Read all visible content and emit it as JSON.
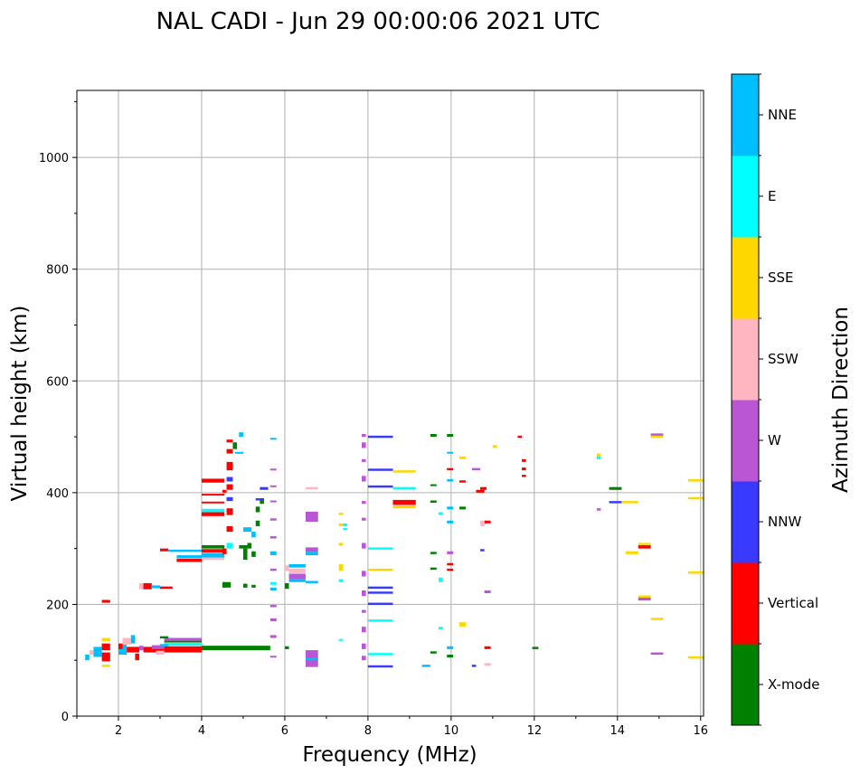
{
  "chart_data": {
    "type": "scatter",
    "title": "NAL CADI - Jun 29 00:00:06 2021 UTC",
    "xlabel": "Frequency (MHz)",
    "ylabel": "Virtual height (km)",
    "xlim": [
      1,
      16.07
    ],
    "ylim": [
      0,
      1120
    ],
    "xticks": [
      2,
      4,
      6,
      8,
      10,
      12,
      14,
      16
    ],
    "yticks": [
      0,
      200,
      400,
      600,
      800,
      1000
    ],
    "grid": true,
    "colorbar": {
      "label": "Azimuth Direction",
      "categories": [
        "X-mode",
        "Vertical",
        "NNW",
        "W",
        "SSW",
        "SSE",
        "E",
        "NNE"
      ],
      "colors": [
        "#008000",
        "#ff0000",
        "#3a3aff",
        "#ba55d3",
        "#ffb6c1",
        "#ffd700",
        "#00ffff",
        "#00bfff"
      ]
    },
    "segments_note": "each segment: [freq_start_MHz, freq_end_MHz, height_low_km, height_high_km, category_index]",
    "segments": [
      [
        4.0,
        5.65,
        118,
        126,
        0
      ],
      [
        3.1,
        4.0,
        114,
        125,
        1
      ],
      [
        3.1,
        4.0,
        126,
        131,
        6
      ],
      [
        3.1,
        4.0,
        132,
        135,
        0
      ],
      [
        3.1,
        4.0,
        135,
        140,
        3
      ],
      [
        2.6,
        3.1,
        114,
        124,
        1
      ],
      [
        2.8,
        3.1,
        120,
        127,
        3
      ],
      [
        2.9,
        3.1,
        110,
        117,
        4
      ],
      [
        3.0,
        3.2,
        125,
        129,
        7
      ],
      [
        3.0,
        3.2,
        139,
        143,
        0
      ],
      [
        1.6,
        1.8,
        98,
        114,
        1
      ],
      [
        1.6,
        1.8,
        118,
        130,
        1
      ],
      [
        1.4,
        1.6,
        106,
        124,
        7
      ],
      [
        1.6,
        1.8,
        88,
        92,
        5
      ],
      [
        1.6,
        1.8,
        134,
        140,
        5
      ],
      [
        1.2,
        1.3,
        100,
        110,
        7
      ],
      [
        1.3,
        1.4,
        110,
        118,
        4
      ],
      [
        2.0,
        2.2,
        110,
        128,
        7
      ],
      [
        2.2,
        2.5,
        114,
        124,
        1
      ],
      [
        2.1,
        2.3,
        128,
        140,
        4
      ],
      [
        2.0,
        2.1,
        120,
        130,
        1
      ],
      [
        2.3,
        2.4,
        130,
        145,
        7
      ],
      [
        2.4,
        2.5,
        100,
        112,
        1
      ],
      [
        2.5,
        2.6,
        118,
        126,
        3
      ],
      [
        1.6,
        1.8,
        203,
        208,
        1
      ],
      [
        2.5,
        2.7,
        227,
        238,
        4
      ],
      [
        2.6,
        2.8,
        227,
        238,
        1
      ],
      [
        2.8,
        3.0,
        229,
        234,
        7
      ],
      [
        3.0,
        3.3,
        228,
        232,
        1
      ],
      [
        3.0,
        3.2,
        295,
        300,
        1
      ],
      [
        3.2,
        4.0,
        294,
        298,
        7
      ],
      [
        3.4,
        4.0,
        283,
        288,
        7
      ],
      [
        3.4,
        4.0,
        276,
        282,
        1
      ],
      [
        4.0,
        4.55,
        300,
        306,
        0
      ],
      [
        4.0,
        4.55,
        293,
        299,
        1
      ],
      [
        4.0,
        4.55,
        284,
        292,
        7
      ],
      [
        4.0,
        4.55,
        280,
        284,
        4
      ],
      [
        4.0,
        4.55,
        418,
        425,
        1
      ],
      [
        4.0,
        4.55,
        395,
        398,
        1
      ],
      [
        4.0,
        4.55,
        381,
        384,
        1
      ],
      [
        4.0,
        4.55,
        365,
        371,
        6
      ],
      [
        4.0,
        4.55,
        358,
        365,
        1
      ],
      [
        4.6,
        4.75,
        440,
        455,
        1
      ],
      [
        4.6,
        4.75,
        405,
        415,
        1
      ],
      [
        4.6,
        4.75,
        360,
        372,
        1
      ],
      [
        4.6,
        4.75,
        330,
        340,
        1
      ],
      [
        4.6,
        4.75,
        470,
        478,
        1
      ],
      [
        4.6,
        4.75,
        490,
        495,
        1
      ],
      [
        4.75,
        4.85,
        478,
        490,
        0
      ],
      [
        4.6,
        4.75,
        300,
        310,
        6
      ],
      [
        4.6,
        4.75,
        420,
        428,
        2
      ],
      [
        4.6,
        4.75,
        385,
        392,
        2
      ],
      [
        4.5,
        4.6,
        290,
        300,
        1
      ],
      [
        4.5,
        4.6,
        400,
        405,
        1
      ],
      [
        4.8,
        5.0,
        470,
        473,
        7
      ],
      [
        4.9,
        5.0,
        500,
        508,
        7
      ],
      [
        5.0,
        5.1,
        280,
        300,
        0
      ],
      [
        5.1,
        5.2,
        300,
        310,
        0
      ],
      [
        5.2,
        5.3,
        285,
        295,
        0
      ],
      [
        5.2,
        5.3,
        320,
        330,
        7
      ],
      [
        5.3,
        5.4,
        340,
        350,
        0
      ],
      [
        5.3,
        5.4,
        365,
        375,
        0
      ],
      [
        5.4,
        5.5,
        380,
        390,
        0
      ],
      [
        5.3,
        5.5,
        386,
        390,
        2
      ],
      [
        5.4,
        5.6,
        405,
        410,
        2
      ],
      [
        5.0,
        5.2,
        330,
        338,
        7
      ],
      [
        4.5,
        4.7,
        230,
        240,
        0
      ],
      [
        5.0,
        5.1,
        230,
        237,
        0
      ],
      [
        5.2,
        5.3,
        230,
        235,
        0
      ],
      [
        4.9,
        5.1,
        300,
        306,
        0
      ],
      [
        5.65,
        5.8,
        495,
        498,
        7
      ],
      [
        5.65,
        5.8,
        440,
        443,
        3
      ],
      [
        5.65,
        5.8,
        410,
        413,
        3
      ],
      [
        5.65,
        5.8,
        350,
        354,
        3
      ],
      [
        5.65,
        5.8,
        318,
        322,
        3
      ],
      [
        5.65,
        5.8,
        288,
        295,
        7
      ],
      [
        5.65,
        5.8,
        260,
        264,
        3
      ],
      [
        5.65,
        5.8,
        235,
        240,
        6
      ],
      [
        5.65,
        5.8,
        195,
        199,
        3
      ],
      [
        5.65,
        5.8,
        170,
        175,
        3
      ],
      [
        5.65,
        5.8,
        140,
        145,
        3
      ],
      [
        5.65,
        5.8,
        105,
        108,
        3
      ],
      [
        5.65,
        5.8,
        383,
        386,
        3
      ],
      [
        5.65,
        5.8,
        225,
        230,
        7
      ],
      [
        6.5,
        6.8,
        348,
        366,
        3
      ],
      [
        6.5,
        6.8,
        294,
        302,
        3
      ],
      [
        6.5,
        6.8,
        288,
        294,
        7
      ],
      [
        6.5,
        6.8,
        406,
        410,
        4
      ],
      [
        6.5,
        6.8,
        88,
        118,
        3
      ],
      [
        6.5,
        6.8,
        100,
        104,
        7
      ],
      [
        6.5,
        6.8,
        238,
        242,
        7
      ],
      [
        6.1,
        6.5,
        266,
        272,
        7
      ],
      [
        6.1,
        6.5,
        256,
        264,
        4
      ],
      [
        6.1,
        6.5,
        245,
        255,
        3
      ],
      [
        6.1,
        6.5,
        240,
        245,
        7
      ],
      [
        6.0,
        6.1,
        120,
        125,
        0
      ],
      [
        6.0,
        6.1,
        228,
        238,
        0
      ],
      [
        6.0,
        6.1,
        260,
        270,
        4
      ],
      [
        7.3,
        7.4,
        360,
        364,
        5
      ],
      [
        7.3,
        7.4,
        340,
        345,
        5
      ],
      [
        7.4,
        7.5,
        340,
        345,
        6
      ],
      [
        7.4,
        7.5,
        333,
        337,
        6
      ],
      [
        7.3,
        7.4,
        305,
        310,
        5
      ],
      [
        7.3,
        7.4,
        260,
        272,
        5
      ],
      [
        7.3,
        7.4,
        240,
        245,
        6
      ],
      [
        7.3,
        7.4,
        135,
        138,
        6
      ],
      [
        7.85,
        7.95,
        500,
        505,
        3
      ],
      [
        7.85,
        7.95,
        480,
        490,
        3
      ],
      [
        7.85,
        7.95,
        455,
        460,
        3
      ],
      [
        7.85,
        7.95,
        420,
        430,
        3
      ],
      [
        7.85,
        7.95,
        380,
        385,
        3
      ],
      [
        7.85,
        7.95,
        350,
        355,
        3
      ],
      [
        7.85,
        7.95,
        300,
        310,
        3
      ],
      [
        7.85,
        7.95,
        250,
        260,
        3
      ],
      [
        7.85,
        7.95,
        215,
        225,
        3
      ],
      [
        7.85,
        7.95,
        185,
        190,
        3
      ],
      [
        7.85,
        7.95,
        150,
        160,
        3
      ],
      [
        7.85,
        7.95,
        120,
        130,
        3
      ],
      [
        7.85,
        7.95,
        100,
        108,
        3
      ],
      [
        8.0,
        8.6,
        498,
        502,
        2
      ],
      [
        8.0,
        8.6,
        439,
        443,
        2
      ],
      [
        8.0,
        8.6,
        409,
        413,
        2
      ],
      [
        8.0,
        8.6,
        228,
        232,
        2
      ],
      [
        8.0,
        8.6,
        219,
        223,
        2
      ],
      [
        8.0,
        8.6,
        199,
        203,
        2
      ],
      [
        8.0,
        8.6,
        87,
        91,
        2
      ],
      [
        8.0,
        8.6,
        298,
        302,
        6
      ],
      [
        8.0,
        8.6,
        169,
        173,
        6
      ],
      [
        8.0,
        8.6,
        109,
        113,
        6
      ],
      [
        8.0,
        8.6,
        260,
        264,
        5
      ],
      [
        8.6,
        9.15,
        378,
        387,
        1
      ],
      [
        8.6,
        9.15,
        372,
        377,
        5
      ],
      [
        8.6,
        9.15,
        436,
        440,
        5
      ],
      [
        8.6,
        9.15,
        406,
        410,
        6
      ],
      [
        9.5,
        9.65,
        500,
        505,
        0
      ],
      [
        9.5,
        9.65,
        412,
        415,
        0
      ],
      [
        9.5,
        9.65,
        382,
        386,
        0
      ],
      [
        9.5,
        9.65,
        290,
        294,
        0
      ],
      [
        9.5,
        9.65,
        262,
        266,
        0
      ],
      [
        9.5,
        9.65,
        112,
        116,
        0
      ],
      [
        9.7,
        9.8,
        360,
        365,
        6
      ],
      [
        9.7,
        9.8,
        240,
        248,
        6
      ],
      [
        9.7,
        9.8,
        155,
        160,
        6
      ],
      [
        9.3,
        9.5,
        88,
        92,
        7
      ],
      [
        9.9,
        10.05,
        500,
        505,
        0
      ],
      [
        9.9,
        10.05,
        470,
        473,
        7
      ],
      [
        9.9,
        10.05,
        440,
        444,
        1
      ],
      [
        9.9,
        10.05,
        420,
        424,
        7
      ],
      [
        9.9,
        10.05,
        370,
        375,
        7
      ],
      [
        9.9,
        10.05,
        345,
        350,
        7
      ],
      [
        9.9,
        10.05,
        290,
        295,
        3
      ],
      [
        9.9,
        10.05,
        270,
        274,
        1
      ],
      [
        9.9,
        10.05,
        260,
        264,
        1
      ],
      [
        9.9,
        10.05,
        120,
        125,
        7
      ],
      [
        9.9,
        10.05,
        105,
        110,
        0
      ],
      [
        10.2,
        10.35,
        460,
        465,
        5
      ],
      [
        10.2,
        10.35,
        418,
        422,
        1
      ],
      [
        10.2,
        10.35,
        370,
        375,
        0
      ],
      [
        10.2,
        10.35,
        160,
        168,
        5
      ],
      [
        10.5,
        10.6,
        88,
        92,
        2
      ],
      [
        10.5,
        10.7,
        440,
        444,
        3
      ],
      [
        10.6,
        10.8,
        400,
        405,
        1
      ],
      [
        10.7,
        10.85,
        405,
        410,
        1
      ],
      [
        10.8,
        10.95,
        345,
        350,
        1
      ],
      [
        10.7,
        10.8,
        295,
        299,
        2
      ],
      [
        10.7,
        10.8,
        340,
        350,
        4
      ],
      [
        10.8,
        10.95,
        220,
        225,
        3
      ],
      [
        10.8,
        10.95,
        120,
        125,
        1
      ],
      [
        10.8,
        10.95,
        90,
        95,
        4
      ],
      [
        11.0,
        11.1,
        480,
        485,
        5
      ],
      [
        11.6,
        11.7,
        498,
        502,
        1
      ],
      [
        11.7,
        11.8,
        455,
        460,
        1
      ],
      [
        11.7,
        11.8,
        440,
        445,
        1
      ],
      [
        11.7,
        11.8,
        428,
        432,
        1
      ],
      [
        11.95,
        12.1,
        120,
        124,
        0
      ],
      [
        13.5,
        13.6,
        465,
        470,
        5
      ],
      [
        13.5,
        13.6,
        460,
        465,
        6
      ],
      [
        13.5,
        13.6,
        368,
        372,
        3
      ],
      [
        13.8,
        14.1,
        405,
        410,
        0
      ],
      [
        13.8,
        14.1,
        381,
        385,
        2
      ],
      [
        14.1,
        14.5,
        381,
        385,
        5
      ],
      [
        14.5,
        14.8,
        300,
        306,
        1
      ],
      [
        14.5,
        14.8,
        306,
        310,
        5
      ],
      [
        14.2,
        14.5,
        290,
        295,
        5
      ],
      [
        14.5,
        14.8,
        207,
        212,
        3
      ],
      [
        14.5,
        14.8,
        212,
        216,
        5
      ],
      [
        14.8,
        15.1,
        498,
        502,
        5
      ],
      [
        14.8,
        15.1,
        502,
        506,
        3
      ],
      [
        14.8,
        15.1,
        110,
        114,
        3
      ],
      [
        14.8,
        15.1,
        172,
        176,
        5
      ],
      [
        15.7,
        16.07,
        420,
        424,
        5
      ],
      [
        15.7,
        16.07,
        388,
        392,
        5
      ],
      [
        15.7,
        16.07,
        255,
        259,
        5
      ],
      [
        15.7,
        16.07,
        103,
        107,
        5
      ]
    ]
  }
}
